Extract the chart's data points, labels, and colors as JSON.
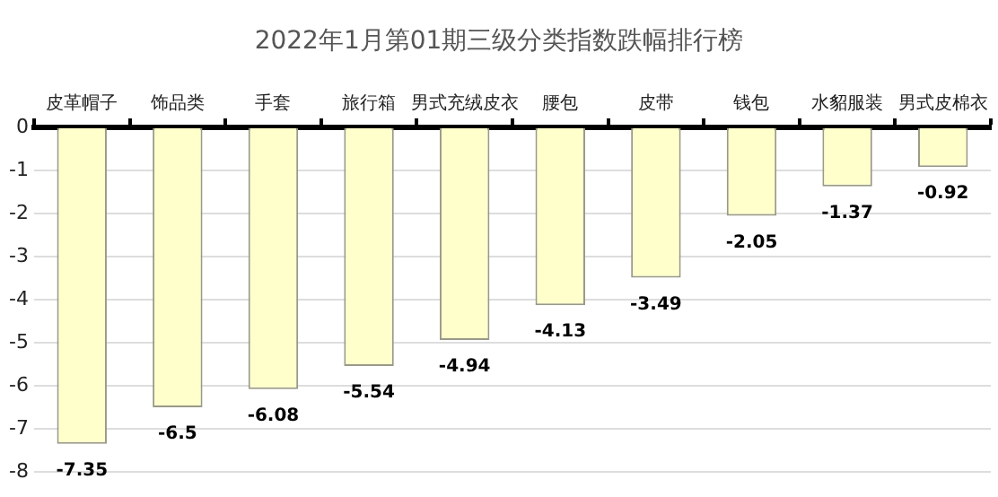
{
  "chart_data": {
    "type": "bar",
    "title": "2022年1月第01期三级分类指数跌幅排行榜",
    "categories": [
      "皮革帽子",
      "饰品类",
      "手套",
      "旅行箱",
      "男式充绒皮衣",
      "腰包",
      "皮带",
      "钱包",
      "水貂服装",
      "男式皮棉衣"
    ],
    "values": [
      -7.35,
      -6.5,
      -6.08,
      -5.54,
      -4.94,
      -4.13,
      -3.49,
      -2.05,
      -1.37,
      -0.92
    ],
    "color": "#ffffcc",
    "ylim": [
      -8,
      0
    ],
    "yticks": [
      0,
      -1,
      -2,
      -3,
      -4,
      -5,
      -6,
      -7,
      -8
    ],
    "grid": "y",
    "data_labels": true,
    "legend": false
  }
}
